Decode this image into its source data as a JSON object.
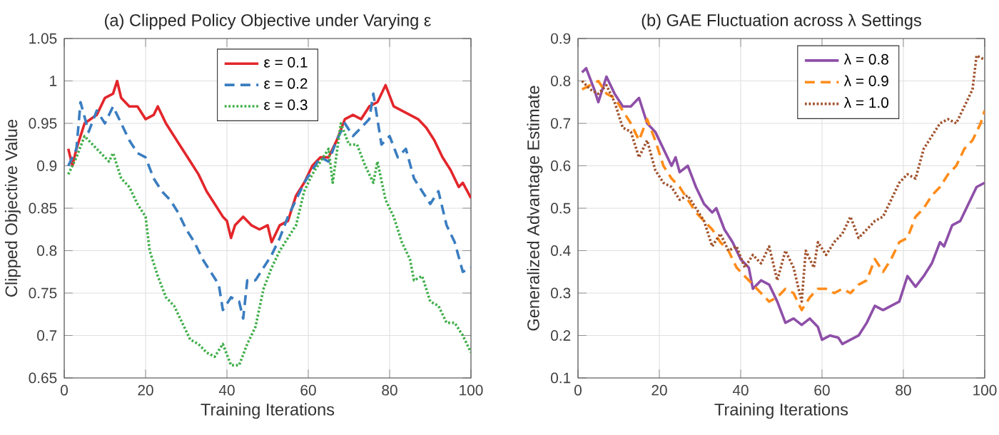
{
  "chart_data": [
    {
      "type": "line",
      "title": "(a) Clipped Policy Objective under Varying ε",
      "xlabel": "Training Iterations",
      "ylabel": "Clipped Objective Value",
      "xlim": [
        0,
        100
      ],
      "ylim": [
        0.65,
        1.05
      ],
      "xticks": [
        0,
        20,
        40,
        60,
        80,
        100
      ],
      "yticks": [
        0.65,
        0.7,
        0.75,
        0.8,
        0.85,
        0.9,
        0.95,
        1,
        1.05
      ],
      "grid": true,
      "legend": "top",
      "series": [
        {
          "name": "ε = 0.1",
          "color": "#e3262b",
          "line_style": "solid",
          "x": [
            1,
            2,
            3,
            5,
            8,
            10,
            12,
            13,
            14,
            16,
            18,
            20,
            22,
            23,
            25,
            27,
            29,
            31,
            33,
            35,
            37,
            39,
            40,
            41,
            42,
            44,
            46,
            48,
            50,
            51,
            53,
            55,
            57,
            59,
            61,
            63,
            65,
            67,
            69,
            71,
            73,
            75,
            77,
            79,
            81,
            83,
            85,
            87,
            89,
            91,
            93,
            95,
            97,
            98,
            100
          ],
          "values": [
            0.92,
            0.9,
            0.92,
            0.95,
            0.96,
            0.98,
            0.985,
            1.0,
            0.98,
            0.97,
            0.97,
            0.955,
            0.96,
            0.97,
            0.95,
            0.935,
            0.92,
            0.905,
            0.89,
            0.87,
            0.855,
            0.84,
            0.835,
            0.815,
            0.83,
            0.84,
            0.83,
            0.825,
            0.83,
            0.81,
            0.83,
            0.835,
            0.865,
            0.88,
            0.9,
            0.91,
            0.91,
            0.93,
            0.955,
            0.96,
            0.955,
            0.97,
            0.975,
            0.995,
            0.97,
            0.965,
            0.96,
            0.955,
            0.945,
            0.93,
            0.91,
            0.895,
            0.875,
            0.88,
            0.862
          ]
        },
        {
          "name": "ε = 0.2",
          "color": "#3a7dc0",
          "line_style": "dashed",
          "x": [
            1,
            3,
            4,
            6,
            8,
            10,
            12,
            14,
            16,
            18,
            20,
            22,
            24,
            26,
            28,
            30,
            32,
            34,
            36,
            38,
            39,
            41,
            43,
            44,
            45,
            47,
            49,
            51,
            53,
            55,
            57,
            59,
            61,
            63,
            65,
            67,
            69,
            71,
            73,
            75,
            76,
            78,
            80,
            82,
            84,
            86,
            88,
            90,
            92,
            94,
            96,
            98,
            100
          ],
          "values": [
            0.9,
            0.92,
            0.975,
            0.94,
            0.965,
            0.95,
            0.97,
            0.95,
            0.93,
            0.915,
            0.91,
            0.885,
            0.87,
            0.86,
            0.845,
            0.825,
            0.81,
            0.79,
            0.775,
            0.76,
            0.73,
            0.745,
            0.74,
            0.72,
            0.765,
            0.765,
            0.78,
            0.795,
            0.815,
            0.84,
            0.86,
            0.88,
            0.895,
            0.91,
            0.905,
            0.93,
            0.95,
            0.935,
            0.945,
            0.955,
            0.985,
            0.925,
            0.935,
            0.91,
            0.92,
            0.885,
            0.87,
            0.855,
            0.87,
            0.83,
            0.81,
            0.775,
            0.78
          ]
        },
        {
          "name": "ε = 0.3",
          "color": "#3fae49",
          "line_style": "dotted",
          "x": [
            1,
            3,
            5,
            7,
            9,
            11,
            12,
            14,
            16,
            18,
            20,
            21,
            23,
            25,
            27,
            29,
            31,
            33,
            35,
            37,
            39,
            41,
            43,
            45,
            47,
            49,
            51,
            53,
            55,
            57,
            59,
            61,
            63,
            65,
            66,
            68,
            70,
            72,
            74,
            76,
            77,
            79,
            81,
            83,
            85,
            86,
            88,
            90,
            92,
            94,
            96,
            98,
            100
          ],
          "values": [
            0.89,
            0.91,
            0.935,
            0.925,
            0.915,
            0.905,
            0.915,
            0.885,
            0.875,
            0.855,
            0.84,
            0.8,
            0.77,
            0.745,
            0.735,
            0.715,
            0.695,
            0.69,
            0.68,
            0.675,
            0.69,
            0.665,
            0.665,
            0.69,
            0.71,
            0.755,
            0.78,
            0.8,
            0.815,
            0.83,
            0.87,
            0.89,
            0.905,
            0.92,
            0.88,
            0.95,
            0.925,
            0.925,
            0.9,
            0.88,
            0.905,
            0.86,
            0.84,
            0.81,
            0.79,
            0.765,
            0.77,
            0.74,
            0.735,
            0.715,
            0.715,
            0.7,
            0.68
          ]
        }
      ]
    },
    {
      "type": "line",
      "title": "(b) GAE Fluctuation across λ Settings",
      "xlabel": "Training Iterations",
      "ylabel": "Generalized Advantage Estimate",
      "xlim": [
        0,
        100
      ],
      "ylim": [
        0.1,
        0.9
      ],
      "xticks": [
        0,
        20,
        40,
        60,
        80,
        100
      ],
      "yticks": [
        0.1,
        0.2,
        0.3,
        0.4,
        0.5,
        0.6,
        0.7,
        0.8,
        0.9
      ],
      "grid": true,
      "legend": "top right",
      "series": [
        {
          "name": "λ = 0.8",
          "color": "#8e4fa8",
          "line_style": "solid",
          "x": [
            1,
            2,
            4,
            5,
            7,
            9,
            11,
            13,
            15,
            17,
            19,
            21,
            23,
            24,
            25,
            27,
            29,
            31,
            33,
            34,
            36,
            38,
            40,
            42,
            43,
            45,
            47,
            49,
            51,
            53,
            55,
            57,
            59,
            60,
            62,
            64,
            65,
            67,
            69,
            71,
            73,
            75,
            77,
            79,
            81,
            83,
            85,
            87,
            89,
            90,
            92,
            94,
            96,
            98,
            100
          ],
          "values": [
            0.82,
            0.83,
            0.78,
            0.75,
            0.81,
            0.77,
            0.74,
            0.74,
            0.76,
            0.7,
            0.68,
            0.64,
            0.6,
            0.62,
            0.585,
            0.6,
            0.55,
            0.51,
            0.49,
            0.5,
            0.45,
            0.42,
            0.38,
            0.36,
            0.31,
            0.33,
            0.32,
            0.28,
            0.23,
            0.24,
            0.225,
            0.24,
            0.22,
            0.19,
            0.2,
            0.195,
            0.18,
            0.19,
            0.2,
            0.23,
            0.27,
            0.26,
            0.27,
            0.28,
            0.34,
            0.315,
            0.34,
            0.37,
            0.42,
            0.41,
            0.46,
            0.47,
            0.51,
            0.55,
            0.56
          ]
        },
        {
          "name": "λ = 0.9",
          "color": "#ff8c1a",
          "line_style": "dashed",
          "x": [
            1,
            3,
            5,
            7,
            9,
            11,
            13,
            15,
            17,
            19,
            21,
            23,
            25,
            27,
            29,
            31,
            33,
            35,
            37,
            39,
            41,
            43,
            45,
            47,
            49,
            51,
            53,
            55,
            57,
            59,
            61,
            63,
            65,
            67,
            69,
            71,
            73,
            75,
            77,
            79,
            81,
            83,
            85,
            87,
            89,
            91,
            93,
            95,
            97,
            99,
            100
          ],
          "values": [
            0.78,
            0.79,
            0.8,
            0.77,
            0.76,
            0.73,
            0.7,
            0.66,
            0.71,
            0.66,
            0.6,
            0.57,
            0.55,
            0.52,
            0.49,
            0.47,
            0.45,
            0.42,
            0.4,
            0.36,
            0.34,
            0.32,
            0.3,
            0.28,
            0.29,
            0.31,
            0.3,
            0.26,
            0.29,
            0.31,
            0.31,
            0.3,
            0.31,
            0.3,
            0.32,
            0.33,
            0.38,
            0.35,
            0.38,
            0.42,
            0.43,
            0.48,
            0.5,
            0.53,
            0.55,
            0.58,
            0.6,
            0.64,
            0.66,
            0.7,
            0.73
          ]
        },
        {
          "name": "λ = 1.0",
          "color": "#a0522d",
          "line_style": "dotted",
          "x": [
            1,
            3,
            5,
            7,
            9,
            11,
            13,
            15,
            17,
            19,
            21,
            23,
            25,
            27,
            29,
            31,
            33,
            35,
            37,
            39,
            41,
            43,
            45,
            47,
            49,
            51,
            53,
            55,
            56,
            58,
            59,
            61,
            63,
            65,
            67,
            69,
            71,
            73,
            75,
            77,
            79,
            81,
            83,
            85,
            87,
            89,
            91,
            93,
            95,
            97,
            98,
            100
          ],
          "values": [
            0.8,
            0.78,
            0.77,
            0.79,
            0.75,
            0.69,
            0.68,
            0.62,
            0.66,
            0.59,
            0.56,
            0.55,
            0.52,
            0.53,
            0.5,
            0.47,
            0.41,
            0.44,
            0.4,
            0.41,
            0.36,
            0.39,
            0.37,
            0.41,
            0.33,
            0.4,
            0.36,
            0.28,
            0.4,
            0.36,
            0.42,
            0.39,
            0.42,
            0.44,
            0.48,
            0.43,
            0.45,
            0.47,
            0.48,
            0.52,
            0.56,
            0.58,
            0.57,
            0.64,
            0.67,
            0.7,
            0.71,
            0.7,
            0.74,
            0.78,
            0.86,
            0.85
          ]
        }
      ]
    }
  ]
}
